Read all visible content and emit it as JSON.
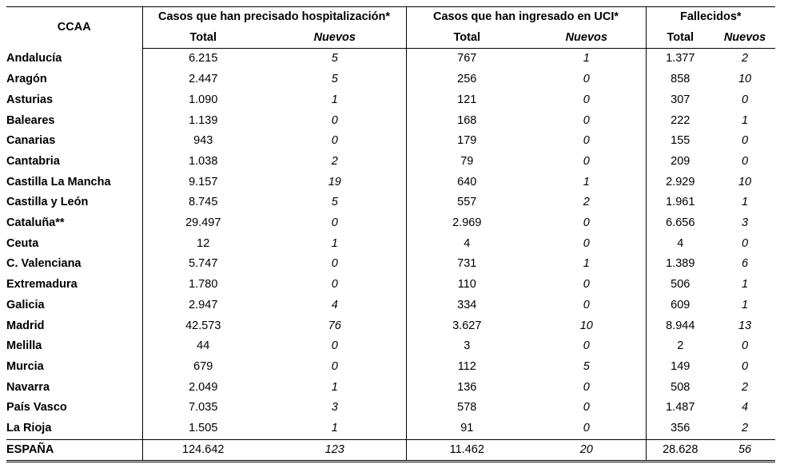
{
  "header": {
    "ccaa": "CCAA",
    "groups": [
      "Casos que han precisado hospitalización*",
      "Casos que han ingresado en UCI*",
      "Fallecidos*"
    ],
    "total_label": "Total",
    "nuevos_label": "Nuevos"
  },
  "rows": [
    {
      "name": "Andalucía",
      "h_total": "6.215",
      "h_new": "5",
      "u_total": "767",
      "u_new": "1",
      "f_total": "1.377",
      "f_new": "2"
    },
    {
      "name": "Aragón",
      "h_total": "2.447",
      "h_new": "5",
      "u_total": "256",
      "u_new": "0",
      "f_total": "858",
      "f_new": "10"
    },
    {
      "name": "Asturias",
      "h_total": "1.090",
      "h_new": "1",
      "u_total": "121",
      "u_new": "0",
      "f_total": "307",
      "f_new": "0"
    },
    {
      "name": "Baleares",
      "h_total": "1.139",
      "h_new": "0",
      "u_total": "168",
      "u_new": "0",
      "f_total": "222",
      "f_new": "1"
    },
    {
      "name": "Canarias",
      "h_total": "943",
      "h_new": "0",
      "u_total": "179",
      "u_new": "0",
      "f_total": "155",
      "f_new": "0"
    },
    {
      "name": "Cantabria",
      "h_total": "1.038",
      "h_new": "2",
      "u_total": "79",
      "u_new": "0",
      "f_total": "209",
      "f_new": "0"
    },
    {
      "name": "Castilla La Mancha",
      "h_total": "9.157",
      "h_new": "19",
      "u_total": "640",
      "u_new": "1",
      "f_total": "2.929",
      "f_new": "10"
    },
    {
      "name": "Castilla y León",
      "h_total": "8.745",
      "h_new": "5",
      "u_total": "557",
      "u_new": "2",
      "f_total": "1.961",
      "f_new": "1"
    },
    {
      "name": "Cataluña**",
      "h_total": "29.497",
      "h_new": "0",
      "u_total": "2.969",
      "u_new": "0",
      "f_total": "6.656",
      "f_new": "3"
    },
    {
      "name": "Ceuta",
      "h_total": "12",
      "h_new": "1",
      "u_total": "4",
      "u_new": "0",
      "f_total": "4",
      "f_new": "0"
    },
    {
      "name": "C. Valenciana",
      "h_total": "5.747",
      "h_new": "0",
      "u_total": "731",
      "u_new": "1",
      "f_total": "1.389",
      "f_new": "6"
    },
    {
      "name": "Extremadura",
      "h_total": "1.780",
      "h_new": "0",
      "u_total": "110",
      "u_new": "0",
      "f_total": "506",
      "f_new": "1"
    },
    {
      "name": "Galicia",
      "h_total": "2.947",
      "h_new": "4",
      "u_total": "334",
      "u_new": "0",
      "f_total": "609",
      "f_new": "1"
    },
    {
      "name": "Madrid",
      "h_total": "42.573",
      "h_new": "76",
      "u_total": "3.627",
      "u_new": "10",
      "f_total": "8.944",
      "f_new": "13"
    },
    {
      "name": "Melilla",
      "h_total": "44",
      "h_new": "0",
      "u_total": "3",
      "u_new": "0",
      "f_total": "2",
      "f_new": "0"
    },
    {
      "name": "Murcia",
      "h_total": "679",
      "h_new": "0",
      "u_total": "112",
      "u_new": "5",
      "f_total": "149",
      "f_new": "0"
    },
    {
      "name": "Navarra",
      "h_total": "2.049",
      "h_new": "1",
      "u_total": "136",
      "u_new": "0",
      "f_total": "508",
      "f_new": "2"
    },
    {
      "name": "País Vasco",
      "h_total": "7.035",
      "h_new": "3",
      "u_total": "578",
      "u_new": "0",
      "f_total": "1.487",
      "f_new": "4"
    },
    {
      "name": "La Rioja",
      "h_total": "1.505",
      "h_new": "1",
      "u_total": "91",
      "u_new": "0",
      "f_total": "356",
      "f_new": "2"
    }
  ],
  "total": {
    "name": "ESPAÑA",
    "h_total": "124.642",
    "h_new": "123",
    "u_total": "11.462",
    "u_new": "20",
    "f_total": "28.628",
    "f_new": "56"
  }
}
